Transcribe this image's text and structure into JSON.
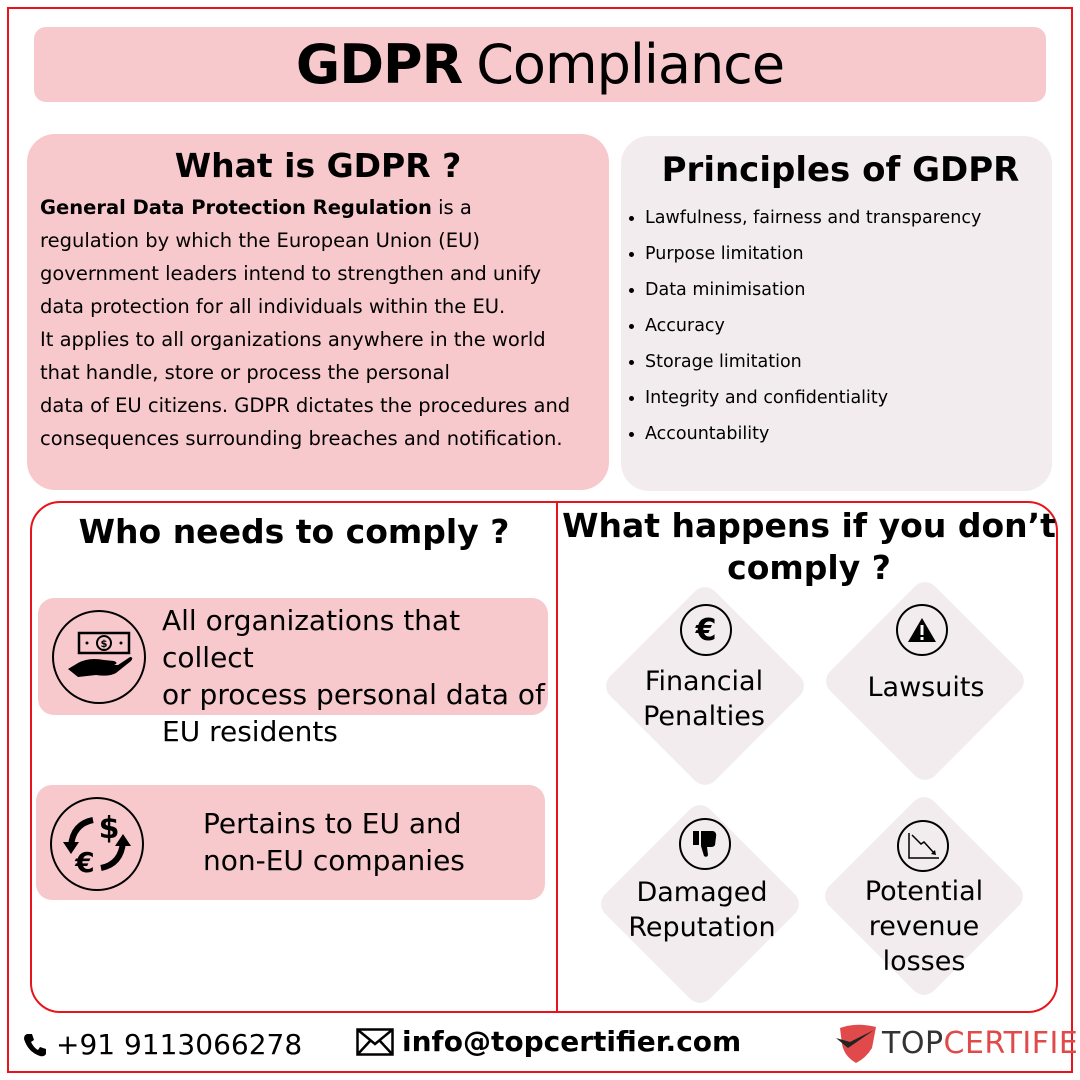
{
  "title": {
    "bold": "GDPR",
    "regular": "Compliance"
  },
  "what": {
    "heading": "What is GDPR ?",
    "lead": "General Data Protection Regulation",
    "body": " is a\nregulation by which the European Union (EU)\ngovernment leaders intend to strengthen and unify\ndata protection for all individuals within the EU.\nIt applies to all organizations anywhere in the world\nthat handle, store or process the personal\ndata of EU citizens. GDPR dictates the procedures and\nconsequences surrounding breaches and notification."
  },
  "principles": {
    "heading": "Principles of GDPR",
    "items": [
      "Lawfulness, fairness and transparency",
      "Purpose limitation",
      "Data minimisation",
      "Accuracy",
      "Storage limitation",
      "Integrity and confidentiality",
      "Accountability"
    ]
  },
  "who": {
    "heading": "Who needs to comply ?",
    "items": [
      {
        "icon": "hand-money-icon",
        "text": "All organizations that collect\nor process personal data of\nEU residents"
      },
      {
        "icon": "currency-exchange-icon",
        "text": "Pertains to EU and\nnon-EU companies"
      }
    ]
  },
  "consequences": {
    "heading": "What happens if you don’t\ncomply ?",
    "items": [
      {
        "icon": "euro-icon",
        "text": "Financial\nPenalties"
      },
      {
        "icon": "warning-icon",
        "text": "Lawsuits"
      },
      {
        "icon": "thumbs-down-icon",
        "text": "Damaged\nReputation"
      },
      {
        "icon": "declining-chart-icon",
        "text": "Potential\nrevenue\nlosses"
      }
    ]
  },
  "footer": {
    "phone": "+91 9113066278",
    "email": "info@topcertifier.com",
    "logo": {
      "dark": "TOP",
      "red": "CERTIFIER"
    }
  },
  "colors": {
    "accent": "#e8141c",
    "pink": "#f7c9cc",
    "grey": "#f2ecee",
    "logo_red": "#e04a4a"
  }
}
